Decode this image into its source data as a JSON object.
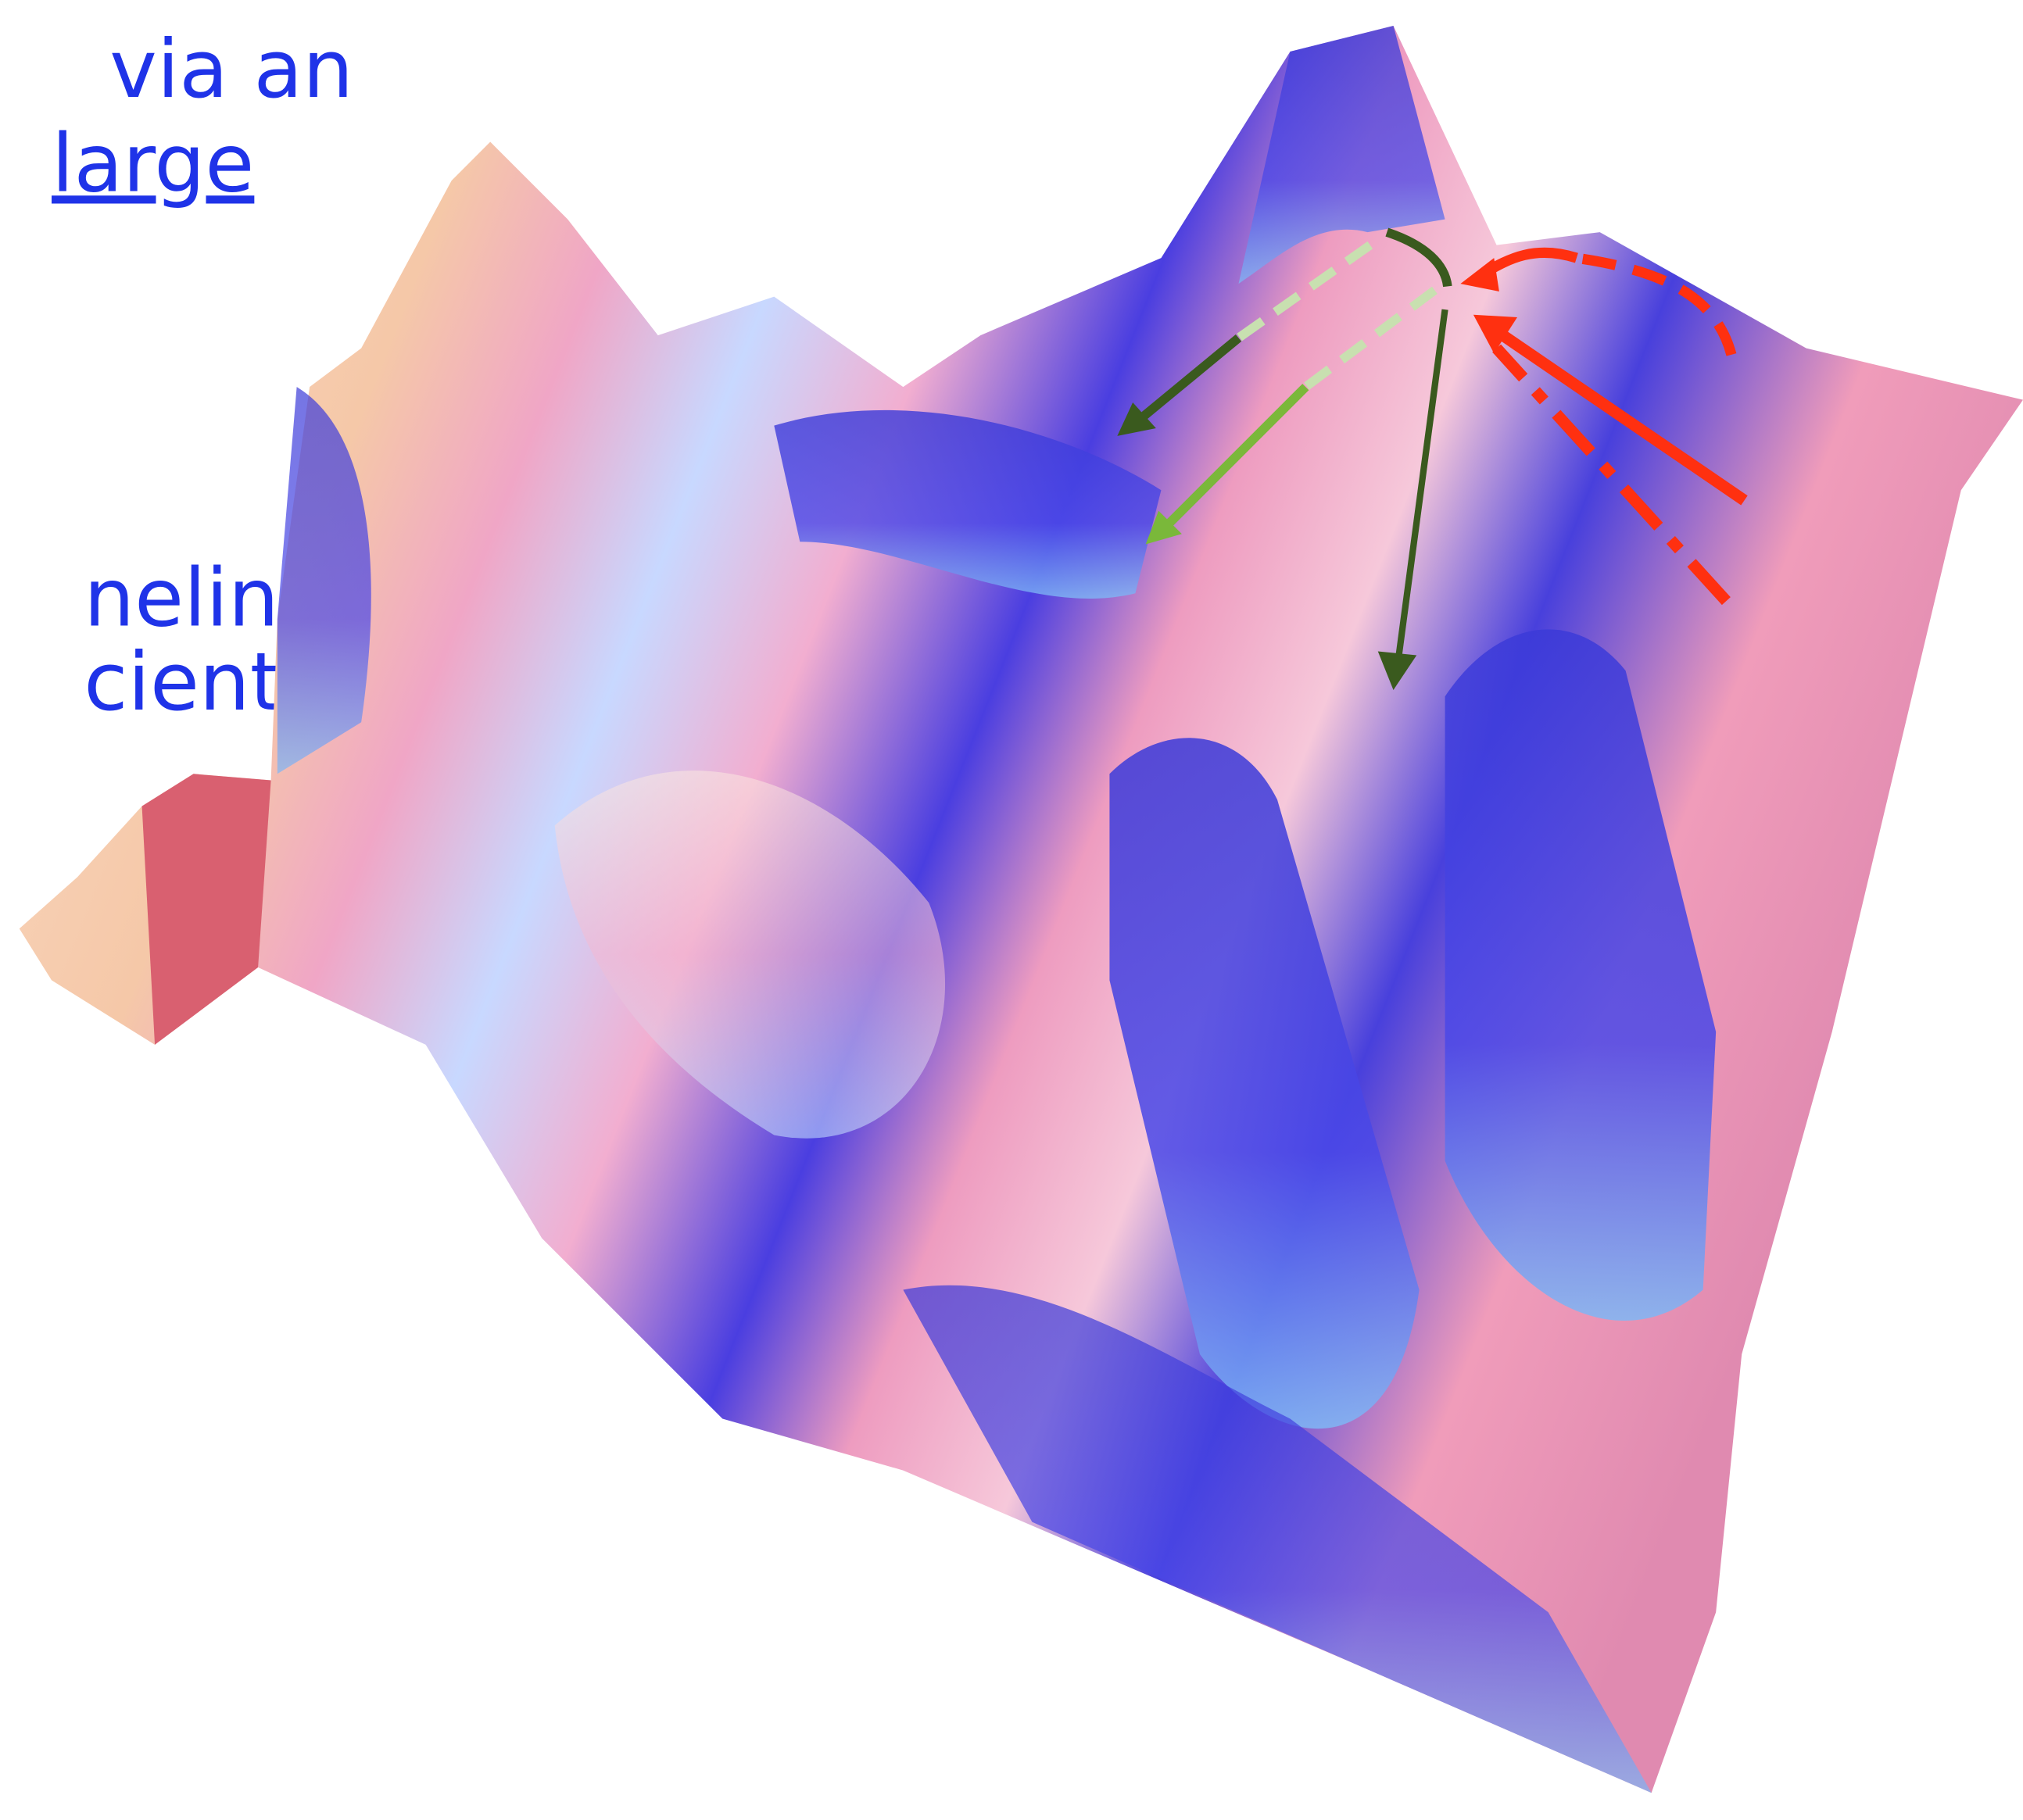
{
  "text_lines": [
    "via an",
    "large",
    "neling",
    "cient"
  ]
}
